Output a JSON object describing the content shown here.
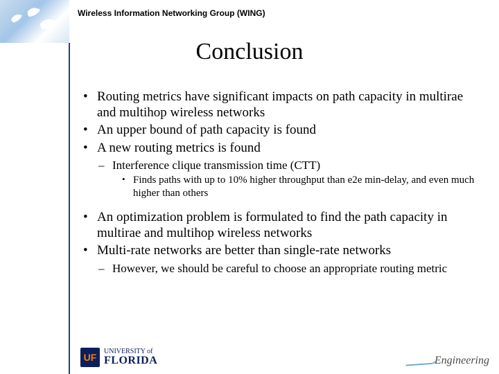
{
  "header": {
    "group_label": "Wireless Information Networking Group (WING)",
    "header_bg_colors": [
      "#c9ddef",
      "#a3c5e8",
      "#ffffff",
      "#d6e6f5"
    ],
    "dove_color": "#ffffff",
    "vline_color": "#2a3a7a"
  },
  "title": {
    "text": "Conclusion",
    "fontsize": 34,
    "color": "#000000",
    "font_family": "Times New Roman"
  },
  "content": {
    "fontsize_l1": 19,
    "fontsize_l2": 17,
    "fontsize_l3": 15,
    "color": "#000000",
    "bullets": [
      {
        "level": 1,
        "text": "Routing metrics have significant impacts on path capacity in multirae and multihop wireless networks"
      },
      {
        "level": 1,
        "text": "An upper bound of path capacity is found"
      },
      {
        "level": 1,
        "text": "A new routing metrics is found"
      },
      {
        "level": 2,
        "text": "Interference clique transmission time (CTT)"
      },
      {
        "level": 3,
        "text": "Finds paths with up to 10% higher throughput than e2e min-delay, and even much higher than others"
      },
      {
        "level": 0,
        "text": ""
      },
      {
        "level": 1,
        "text": "An optimization problem is formulated to find the path capacity in multirae and multihop wireless networks"
      },
      {
        "level": 1,
        "text": "Multi-rate networks are better than single-rate networks"
      },
      {
        "level": 2,
        "text": "However, we should be careful to choose an appropriate routing metric"
      }
    ]
  },
  "footer": {
    "uf_abbrev": "UF",
    "uf_line1": "UNIVERSITY of",
    "uf_line2": "FLORIDA",
    "uf_bg": "#0b1f5b",
    "uf_accent": "#ff7a00",
    "eng_label": "Engineering",
    "eng_color": "#4a4a4a",
    "swoosh_color": "#6fa3d3"
  }
}
